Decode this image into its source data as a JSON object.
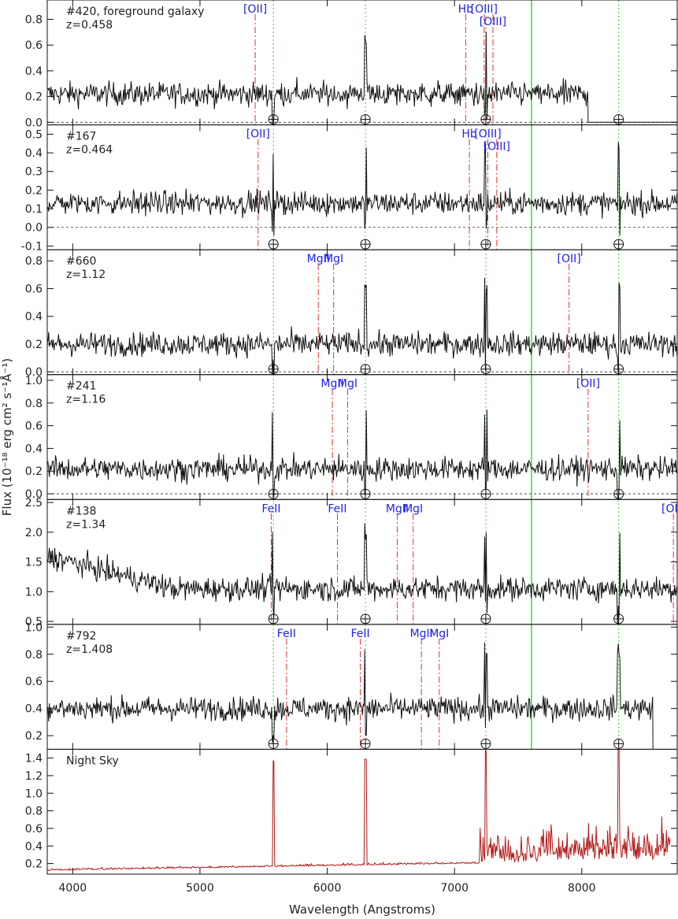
{
  "chart_data": {
    "type": "line",
    "xlabel": "Wavelength (Angstroms)",
    "ylabel": "Flux (10⁻¹⁸ erg cm² s⁻¹Å⁻¹)",
    "xlim": [
      3800,
      8750
    ],
    "xticks": [
      4000,
      5000,
      6000,
      7000,
      8000
    ],
    "colors": {
      "spectrum": "#111111",
      "sky": "#b21a1a",
      "line_marker": "#e23030",
      "sky_marker": "#33cc33",
      "band": "#33dd33",
      "label": "#2222ee"
    },
    "sky_lines": [
      5577,
      6300,
      7246,
      8290
    ],
    "telluric_band": 7605,
    "panels": [
      {
        "name": "#420, foreground galaxy",
        "redshift": "z=0.458",
        "ylim": [
          -0.02,
          0.95
        ],
        "yticks": [
          0.0,
          0.2,
          0.4,
          0.6,
          0.8
        ],
        "zero_line": true,
        "base_level": 0.22,
        "data_end": 8050,
        "lines": [
          {
            "label": "[OII]",
            "wavelength": 5434
          },
          {
            "label": "Hb",
            "wavelength": 7088
          },
          {
            "label": "[OIII]",
            "wavelength": 7233
          },
          {
            "label": "[OIII]",
            "wavelength": 7302
          }
        ]
      },
      {
        "name": "#167",
        "redshift": "z=0.464",
        "ylim": [
          -0.12,
          0.55
        ],
        "yticks": [
          -0.1,
          0.0,
          0.1,
          0.2,
          0.3,
          0.4,
          0.5
        ],
        "zero_line": true,
        "base_level": 0.13,
        "data_end": 8750,
        "lines": [
          {
            "label": "[OII]",
            "wavelength": 5457
          },
          {
            "label": "Hb",
            "wavelength": 7117
          },
          {
            "label": "[OIII]",
            "wavelength": 7262
          },
          {
            "label": "[OIII]",
            "wavelength": 7332
          }
        ]
      },
      {
        "name": "#660",
        "redshift": "z=1.12",
        "ylim": [
          -0.02,
          0.88
        ],
        "yticks": [
          0.0,
          0.2,
          0.4,
          0.6,
          0.8
        ],
        "zero_line": true,
        "base_level": 0.2,
        "data_end": 8750,
        "lines": [
          {
            "label": "MgII",
            "wavelength": 5930
          },
          {
            "label": "MgI",
            "wavelength": 6050
          },
          {
            "label": "[OII]",
            "wavelength": 7900
          }
        ]
      },
      {
        "name": "#241",
        "redshift": "z=1.16",
        "ylim": [
          -0.05,
          1.05
        ],
        "yticks": [
          0.0,
          0.2,
          0.4,
          0.6,
          0.8,
          1.0
        ],
        "zero_line": true,
        "base_level": 0.22,
        "data_end": 8750,
        "lines": [
          {
            "label": "MgII",
            "wavelength": 6040
          },
          {
            "label": "MgI",
            "wavelength": 6160
          },
          {
            "label": "[OII]",
            "wavelength": 8050
          }
        ]
      },
      {
        "name": "#138",
        "redshift": "z=1.34",
        "ylim": [
          0.45,
          2.55
        ],
        "yticks": [
          0.5,
          1.0,
          1.5,
          2.0,
          2.5
        ],
        "zero_line": false,
        "base_level": 1.05,
        "data_end": 8750,
        "lines": [
          {
            "label": "FeII",
            "wavelength": 5560
          },
          {
            "label": "FeII",
            "wavelength": 6080
          },
          {
            "label": "MgII",
            "wavelength": 6550
          },
          {
            "label": "MgI",
            "wavelength": 6675
          },
          {
            "label": "[OII]",
            "wavelength": 8720
          }
        ]
      },
      {
        "name": "#792",
        "redshift": "z=1.408",
        "ylim": [
          0.1,
          1.02
        ],
        "yticks": [
          0.2,
          0.4,
          0.6,
          0.8,
          1.0
        ],
        "zero_line": false,
        "base_level": 0.4,
        "data_end": 8560,
        "lines": [
          {
            "label": "FeII",
            "wavelength": 5680
          },
          {
            "label": "FeII",
            "wavelength": 6260
          },
          {
            "label": "MgII",
            "wavelength": 6740
          },
          {
            "label": "MgI",
            "wavelength": 6880
          }
        ]
      },
      {
        "name": "Night Sky",
        "redshift": "",
        "ylim": [
          0.08,
          1.5
        ],
        "yticks": [
          0.2,
          0.4,
          0.6,
          0.8,
          1.0,
          1.2,
          1.4
        ],
        "zero_line": false,
        "sky": true,
        "base_level": 0.12,
        "data_end": 8700,
        "lines": []
      }
    ]
  }
}
